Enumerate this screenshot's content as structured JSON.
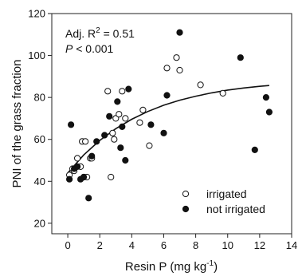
{
  "chart_data": {
    "type": "scatter",
    "xlabel_main": "Resin P (mg kg",
    "xlabel_sup": "-1",
    "xlabel_end": ")",
    "ylabel": "PNI of the grass fraction",
    "xlim": [
      -1,
      14
    ],
    "ylim": [
      15,
      120
    ],
    "xticks": [
      0,
      2,
      4,
      6,
      8,
      10,
      12,
      14
    ],
    "yticks": [
      20,
      40,
      60,
      80,
      100,
      120
    ],
    "annotation_r2_prefix": "Adj. R",
    "annotation_r2_sup": "2",
    "annotation_r2_value": " = 0.51",
    "annotation_p_italic": "P",
    "annotation_p_value": " < 0.001",
    "legend_position": "bottom-right",
    "series": [
      {
        "name": "irrigated",
        "marker": "open-circle",
        "x": [
          0.1,
          0.3,
          0.4,
          0.6,
          0.8,
          0.9,
          1.0,
          1.1,
          1.2,
          1.4,
          1.5,
          2.5,
          2.7,
          2.8,
          2.9,
          3.0,
          3.2,
          3.4,
          3.6,
          4.5,
          4.7,
          5.1,
          6.2,
          6.8,
          7.0,
          8.3,
          9.7
        ],
        "y": [
          43,
          46,
          45,
          51,
          47,
          59,
          42,
          59,
          42,
          51,
          51,
          83,
          42,
          63,
          60,
          70,
          72,
          83,
          70,
          68,
          74,
          57,
          94,
          99,
          93,
          86,
          82
        ]
      },
      {
        "name": "not irrigated",
        "marker": "filled-circle",
        "x": [
          0.1,
          0.2,
          0.4,
          0.6,
          0.8,
          1.0,
          1.3,
          1.5,
          1.8,
          2.3,
          2.6,
          3.1,
          3.3,
          3.4,
          3.6,
          3.8,
          5.2,
          6.0,
          6.2,
          7.0,
          10.8,
          11.7,
          12.4,
          12.6
        ],
        "y": [
          41,
          67,
          46,
          47,
          41,
          42,
          32,
          52,
          59,
          62,
          71,
          78,
          56,
          66,
          50,
          84,
          67,
          63,
          81,
          111,
          99,
          55,
          80,
          73
        ]
      }
    ],
    "fit": {
      "type": "curve",
      "x": [
        0,
        1,
        2,
        3,
        4,
        5,
        6,
        7,
        8,
        9,
        10,
        11,
        12,
        12.6
      ],
      "y": [
        44.0,
        52.6,
        59.5,
        65.1,
        69.6,
        73.3,
        76.3,
        78.7,
        80.6,
        82.2,
        83.5,
        84.5,
        85.3,
        85.7
      ]
    }
  }
}
